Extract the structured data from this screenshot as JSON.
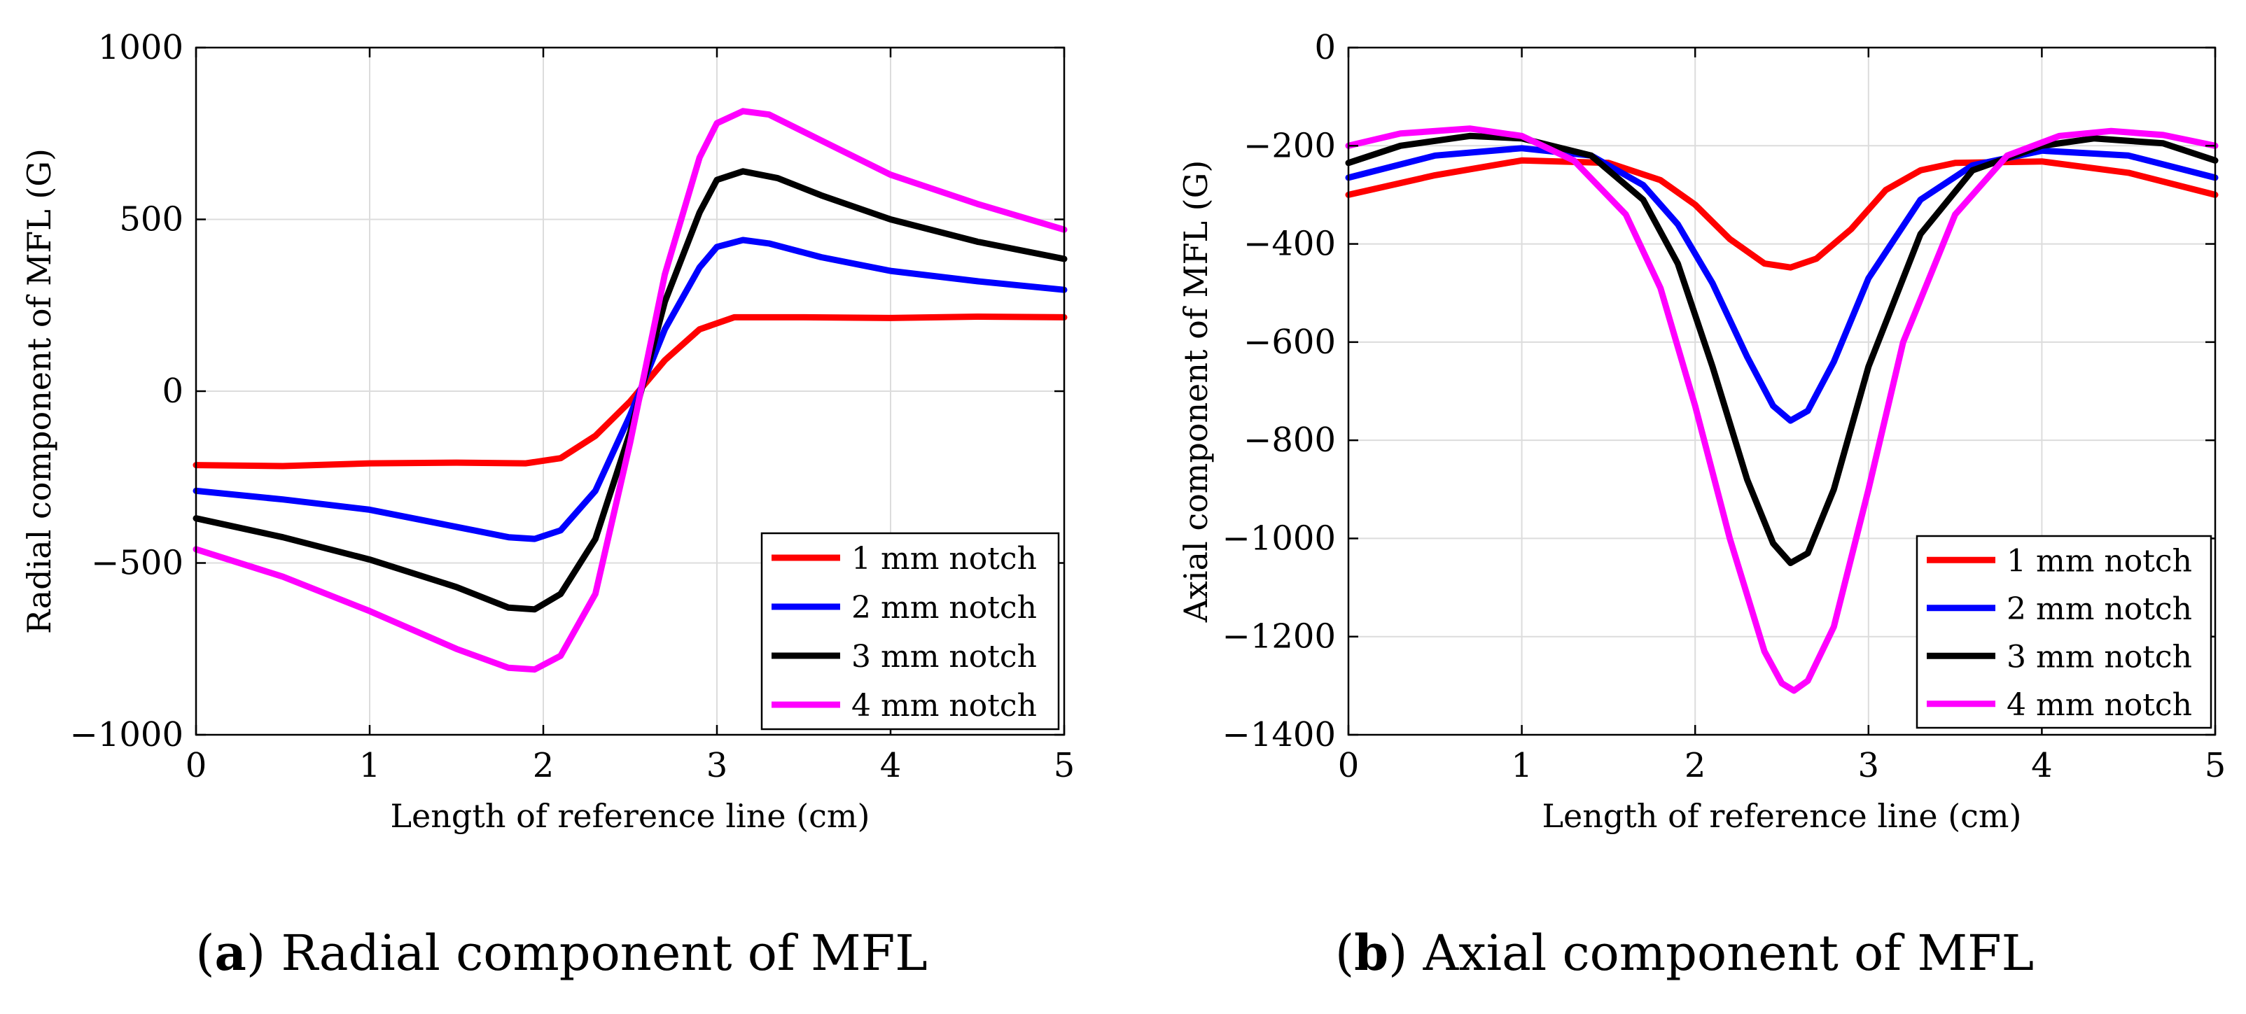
{
  "chart_data": [
    {
      "type": "line",
      "caption_label": "a",
      "caption_text": "Radial component of MFL",
      "xlabel": "Length of reference line (cm)",
      "ylabel": "Radial component of MFL (G)",
      "xlim": [
        0,
        5
      ],
      "ylim": [
        -1000,
        1000
      ],
      "xticks": [
        0,
        1,
        2,
        3,
        4,
        5
      ],
      "yticks": [
        -1000,
        -500,
        0,
        500,
        1000
      ],
      "xtick_labels": [
        "0",
        "1",
        "2",
        "3",
        "4",
        "5"
      ],
      "ytick_labels": [
        "−1000",
        "−500",
        "0",
        "500",
        "1000"
      ],
      "grid": true,
      "legend_position": "bottom-right",
      "series": [
        {
          "name": "1 mm notch",
          "color": "#ff0000",
          "x": [
            0,
            0.5,
            1,
            1.5,
            1.9,
            2.1,
            2.3,
            2.5,
            2.7,
            2.9,
            3.1,
            3.5,
            4,
            4.5,
            5
          ],
          "y": [
            -215,
            -218,
            -210,
            -208,
            -210,
            -195,
            -130,
            -30,
            90,
            180,
            215,
            215,
            213,
            217,
            215
          ]
        },
        {
          "name": "2 mm notch",
          "color": "#0000ff",
          "x": [
            0,
            0.5,
            1,
            1.5,
            1.8,
            1.95,
            2.1,
            2.3,
            2.5,
            2.7,
            2.9,
            3.0,
            3.15,
            3.3,
            3.6,
            4,
            4.5,
            5
          ],
          "y": [
            -290,
            -315,
            -345,
            -395,
            -425,
            -430,
            -405,
            -290,
            -70,
            180,
            360,
            420,
            440,
            430,
            390,
            350,
            320,
            295
          ]
        },
        {
          "name": "3 mm notch",
          "color": "#000000",
          "x": [
            0,
            0.5,
            1,
            1.5,
            1.8,
            1.95,
            2.1,
            2.3,
            2.5,
            2.7,
            2.9,
            3.0,
            3.15,
            3.35,
            3.6,
            4,
            4.5,
            5
          ],
          "y": [
            -370,
            -425,
            -490,
            -570,
            -630,
            -635,
            -590,
            -430,
            -120,
            260,
            520,
            615,
            640,
            620,
            570,
            500,
            435,
            385
          ]
        },
        {
          "name": "4 mm notch",
          "color": "#ff00ff",
          "x": [
            0,
            0.5,
            1,
            1.5,
            1.8,
            1.95,
            2.1,
            2.3,
            2.5,
            2.7,
            2.9,
            3.0,
            3.15,
            3.3,
            3.6,
            4,
            4.5,
            5
          ],
          "y": [
            -460,
            -540,
            -640,
            -750,
            -805,
            -810,
            -770,
            -590,
            -150,
            340,
            680,
            780,
            815,
            805,
            730,
            630,
            545,
            470
          ]
        }
      ]
    },
    {
      "type": "line",
      "caption_label": "b",
      "caption_text": "Axial component of MFL",
      "xlabel": "Length of reference line (cm)",
      "ylabel": "Axial component of MFL (G)",
      "xlim": [
        0,
        5
      ],
      "ylim": [
        -1400,
        0
      ],
      "xticks": [
        0,
        1,
        2,
        3,
        4,
        5
      ],
      "yticks": [
        -1400,
        -1200,
        -1000,
        -800,
        -600,
        -400,
        -200,
        0
      ],
      "xtick_labels": [
        "0",
        "1",
        "2",
        "3",
        "4",
        "5"
      ],
      "ytick_labels": [
        "−1400",
        "−1200",
        "−1000",
        "−800",
        "−600",
        "−400",
        "−200",
        "0"
      ],
      "grid": true,
      "legend_position": "bottom-right",
      "series": [
        {
          "name": "1 mm notch",
          "color": "#ff0000",
          "x": [
            0,
            0.5,
            1,
            1.5,
            1.8,
            2.0,
            2.2,
            2.4,
            2.55,
            2.7,
            2.9,
            3.1,
            3.3,
            3.5,
            4,
            4.5,
            5
          ],
          "y": [
            -300,
            -260,
            -230,
            -235,
            -270,
            -320,
            -390,
            -440,
            -448,
            -430,
            -370,
            -290,
            -250,
            -235,
            -232,
            -255,
            -300
          ]
        },
        {
          "name": "2 mm notch",
          "color": "#0000ff",
          "x": [
            0,
            0.5,
            1,
            1.4,
            1.7,
            1.9,
            2.1,
            2.3,
            2.45,
            2.55,
            2.65,
            2.8,
            3.0,
            3.3,
            3.6,
            4,
            4.5,
            5
          ],
          "y": [
            -265,
            -220,
            -205,
            -220,
            -280,
            -360,
            -480,
            -630,
            -730,
            -760,
            -740,
            -640,
            -470,
            -310,
            -240,
            -210,
            -220,
            -265
          ]
        },
        {
          "name": "3 mm notch",
          "color": "#000000",
          "x": [
            0,
            0.3,
            0.7,
            1.0,
            1.4,
            1.7,
            1.9,
            2.1,
            2.3,
            2.45,
            2.55,
            2.65,
            2.8,
            3.0,
            3.3,
            3.6,
            4,
            4.3,
            4.7,
            5
          ],
          "y": [
            -235,
            -200,
            -180,
            -185,
            -220,
            -310,
            -440,
            -650,
            -880,
            -1010,
            -1050,
            -1030,
            -900,
            -650,
            -380,
            -250,
            -200,
            -185,
            -195,
            -230
          ]
        },
        {
          "name": "4 mm notch",
          "color": "#ff00ff",
          "x": [
            0,
            0.3,
            0.7,
            1.0,
            1.3,
            1.6,
            1.8,
            2.0,
            2.2,
            2.4,
            2.5,
            2.57,
            2.65,
            2.8,
            3.0,
            3.2,
            3.5,
            3.8,
            4.1,
            4.4,
            4.7,
            5
          ],
          "y": [
            -200,
            -175,
            -165,
            -180,
            -230,
            -340,
            -490,
            -730,
            -1000,
            -1230,
            -1295,
            -1310,
            -1290,
            -1180,
            -900,
            -600,
            -340,
            -220,
            -180,
            -170,
            -178,
            -200
          ]
        }
      ]
    }
  ]
}
